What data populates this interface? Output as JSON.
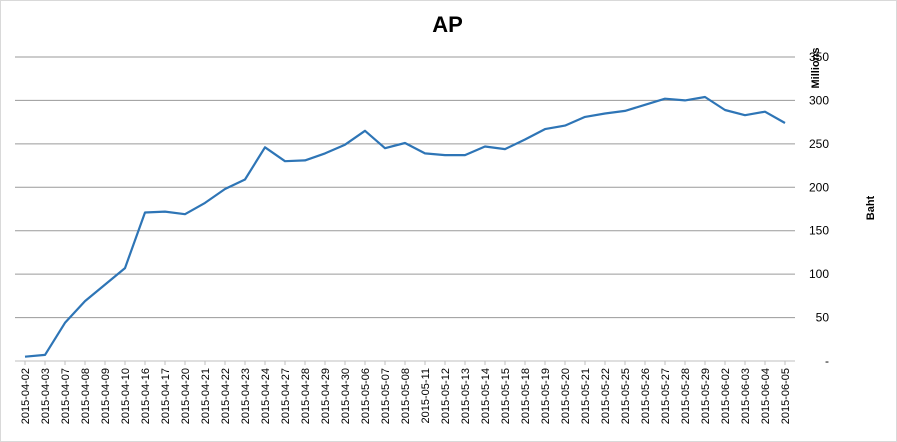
{
  "chart_data": {
    "type": "line",
    "title": "AP",
    "y_unit": "Millions",
    "ylabel": "Baht",
    "xlabel": "",
    "ylim": [
      0,
      350
    ],
    "yticks": [
      "-",
      "50",
      "100",
      "150",
      "200",
      "250",
      "300",
      "350"
    ],
    "grid": true,
    "legend": "none",
    "series_color": "#2e75b6",
    "categories": [
      "2015-04-02",
      "2015-04-03",
      "2015-04-07",
      "2015-04-08",
      "2015-04-09",
      "2015-04-10",
      "2015-04-16",
      "2015-04-17",
      "2015-04-20",
      "2015-04-21",
      "2015-04-22",
      "2015-04-23",
      "2015-04-24",
      "2015-04-27",
      "2015-04-28",
      "2015-04-29",
      "2015-04-30",
      "2015-05-06",
      "2015-05-07",
      "2015-05-08",
      "2015-05-11",
      "2015-05-12",
      "2015-05-13",
      "2015-05-14",
      "2015-05-15",
      "2015-05-18",
      "2015-05-19",
      "2015-05-20",
      "2015-05-21",
      "2015-05-22",
      "2015-05-25",
      "2015-05-26",
      "2015-05-27",
      "2015-05-28",
      "2015-05-29",
      "2015-06-02",
      "2015-06-03",
      "2015-06-04",
      "2015-06-05"
    ],
    "values": [
      5,
      7,
      44,
      69,
      88,
      107,
      171,
      172,
      169,
      182,
      198,
      209,
      246,
      230,
      231,
      239,
      249,
      265,
      245,
      251,
      239,
      237,
      237,
      247,
      244,
      255,
      267,
      271,
      281,
      285,
      288,
      295,
      302,
      300,
      304,
      289,
      283,
      287,
      274
    ]
  }
}
